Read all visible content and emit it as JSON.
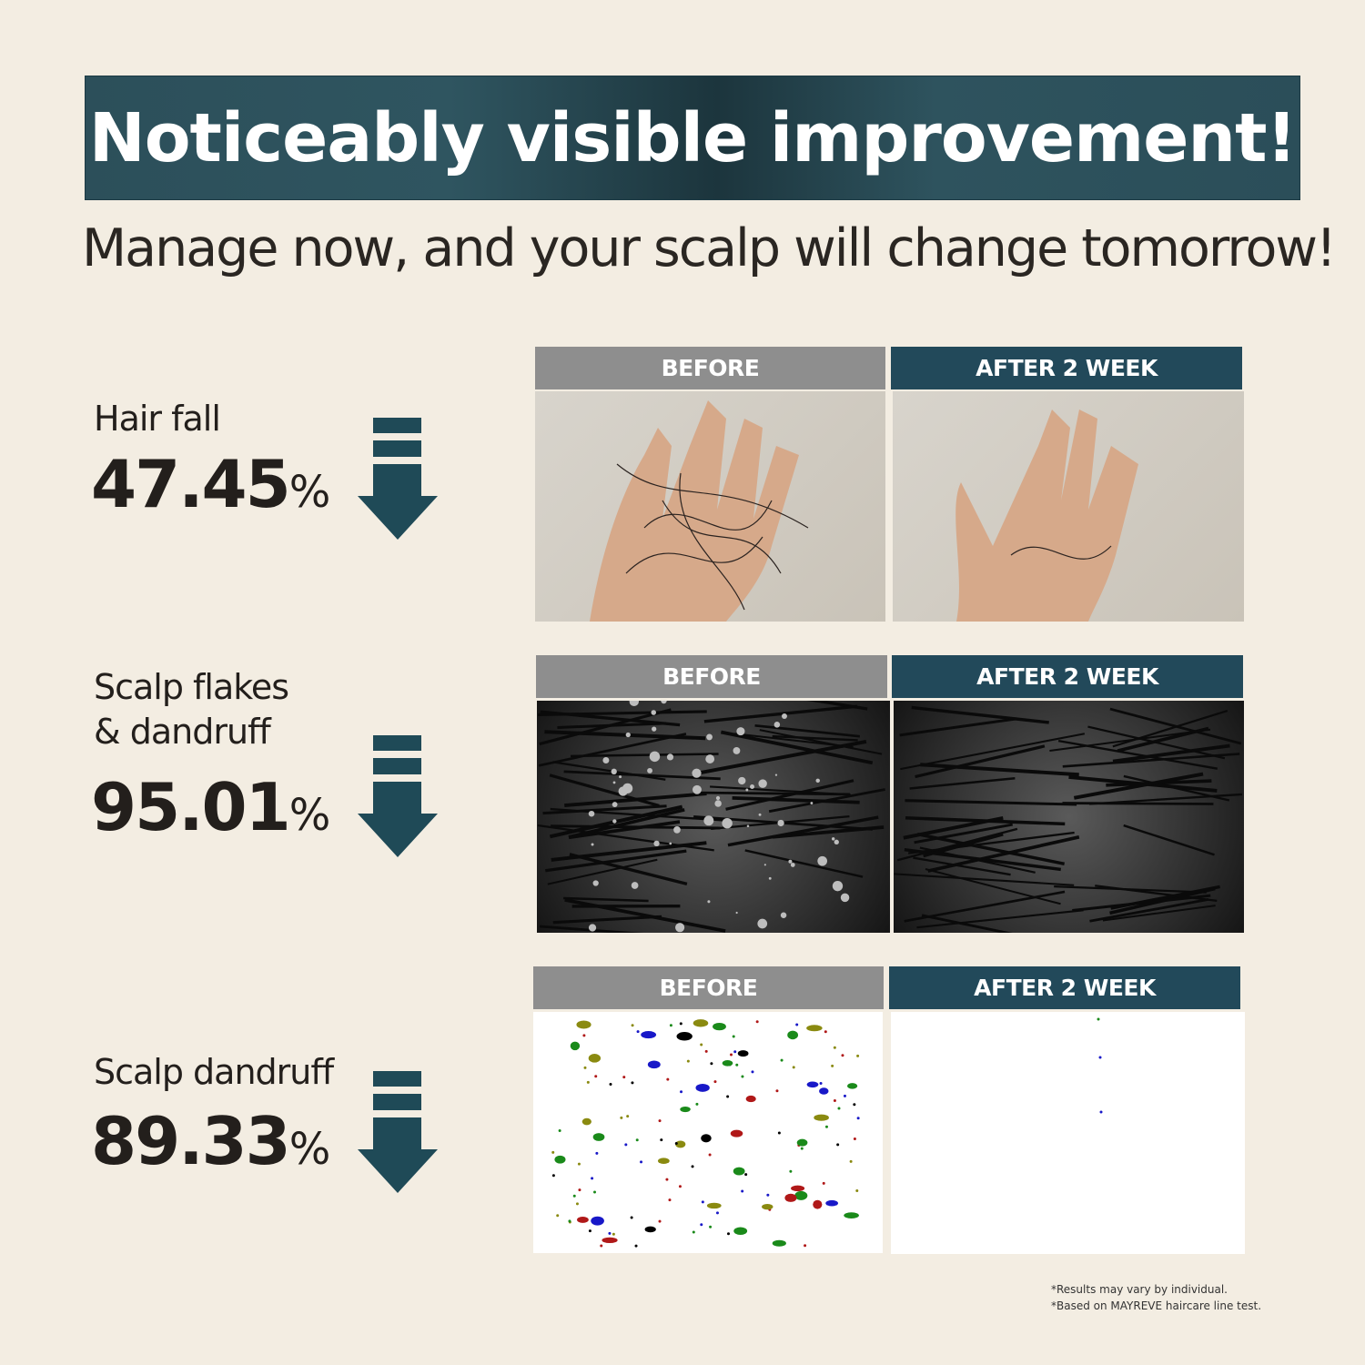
{
  "banner": {
    "title": "Noticeably visible improvement!"
  },
  "subtitle": "Manage now, and your scalp will change tomorrow!",
  "colors": {
    "background": "#f3ede2",
    "accent": "#22495a",
    "before_header": "#8e8e8e"
  },
  "rows": [
    {
      "label_lines": [
        "Hair fall"
      ],
      "value": "47.45",
      "unit": "%",
      "icon": "arrow-down-icon",
      "before_label": "BEFORE",
      "after_label": "AFTER 2 WEEK"
    },
    {
      "label_lines": [
        "Scalp flakes",
        "& dandruff"
      ],
      "value": "95.01",
      "unit": "%",
      "icon": "arrow-down-icon",
      "before_label": "BEFORE",
      "after_label": "AFTER 2 WEEK"
    },
    {
      "label_lines": [
        "Scalp dandruff"
      ],
      "value": "89.33",
      "unit": "%",
      "icon": "arrow-down-icon",
      "before_label": "BEFORE",
      "after_label": "AFTER 2 WEEK"
    }
  ],
  "footnotes": [
    "*Results may vary by individual.",
    "*Based on MAYREVE haircare line test."
  ]
}
